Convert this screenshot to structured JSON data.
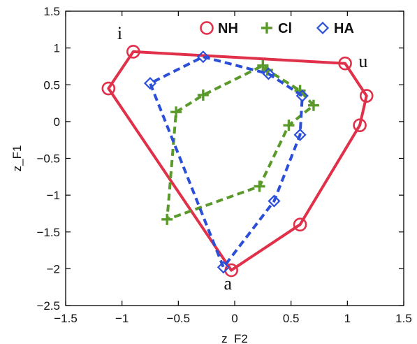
{
  "chart_data": {
    "type": "line",
    "title": "",
    "xlabel": "z_F2",
    "ylabel": "z_F1",
    "xlim": [
      -1.5,
      1.5
    ],
    "ylim": [
      -2.5,
      1.5
    ],
    "xticks": [
      -1.5,
      -1,
      -0.5,
      0,
      0.5,
      1,
      1.5
    ],
    "yticks": [
      -2.5,
      -2,
      -1.5,
      -1,
      -0.5,
      0,
      0.5,
      1,
      1.5
    ],
    "xtick_labels": [
      "−1.5",
      "−1",
      "−0.5",
      "0",
      "0.5",
      "1",
      "1.5"
    ],
    "ytick_labels": [
      "−2.5",
      "−2",
      "−1.5",
      "−1",
      "−0.5",
      "0",
      "0.5",
      "1",
      "1.5"
    ],
    "grid": false,
    "legend_position": "top-right",
    "series": [
      {
        "name": "NH",
        "color": "#e0304a",
        "marker": "circle",
        "line_style": "solid",
        "closed": true,
        "points": [
          {
            "x": -0.9,
            "y": 0.95
          },
          {
            "x": 0.98,
            "y": 0.79
          },
          {
            "x": 1.17,
            "y": 0.35
          },
          {
            "x": 1.11,
            "y": -0.05
          },
          {
            "x": 0.58,
            "y": -1.4
          },
          {
            "x": -0.03,
            "y": -2.02
          },
          {
            "x": -1.12,
            "y": 0.45
          }
        ]
      },
      {
        "name": "Cl",
        "color": "#5a9a2a",
        "marker": "plus",
        "line_style": "dashed",
        "closed": true,
        "points": [
          {
            "x": -0.52,
            "y": 0.13
          },
          {
            "x": -0.28,
            "y": 0.36
          },
          {
            "x": 0.25,
            "y": 0.76
          },
          {
            "x": 0.29,
            "y": 0.7
          },
          {
            "x": 0.58,
            "y": 0.42
          },
          {
            "x": 0.7,
            "y": 0.22
          },
          {
            "x": 0.48,
            "y": -0.05
          },
          {
            "x": 0.22,
            "y": -0.88
          },
          {
            "x": -0.6,
            "y": -1.33
          }
        ]
      },
      {
        "name": "HA",
        "color": "#2b4fd8",
        "marker": "diamond",
        "line_style": "dashed",
        "closed": true,
        "points": [
          {
            "x": -0.28,
            "y": 0.88
          },
          {
            "x": 0.3,
            "y": 0.65
          },
          {
            "x": 0.6,
            "y": 0.35
          },
          {
            "x": 0.58,
            "y": -0.18
          },
          {
            "x": 0.35,
            "y": -1.08
          },
          {
            "x": -0.1,
            "y": -1.98
          },
          {
            "x": -0.75,
            "y": 0.52
          }
        ]
      }
    ],
    "annotations": [
      {
        "text": "i",
        "x": -1.02,
        "y": 1.12
      },
      {
        "text": "u",
        "x": 1.14,
        "y": 0.74
      },
      {
        "text": "a",
        "x": -0.06,
        "y": -2.28
      }
    ]
  }
}
